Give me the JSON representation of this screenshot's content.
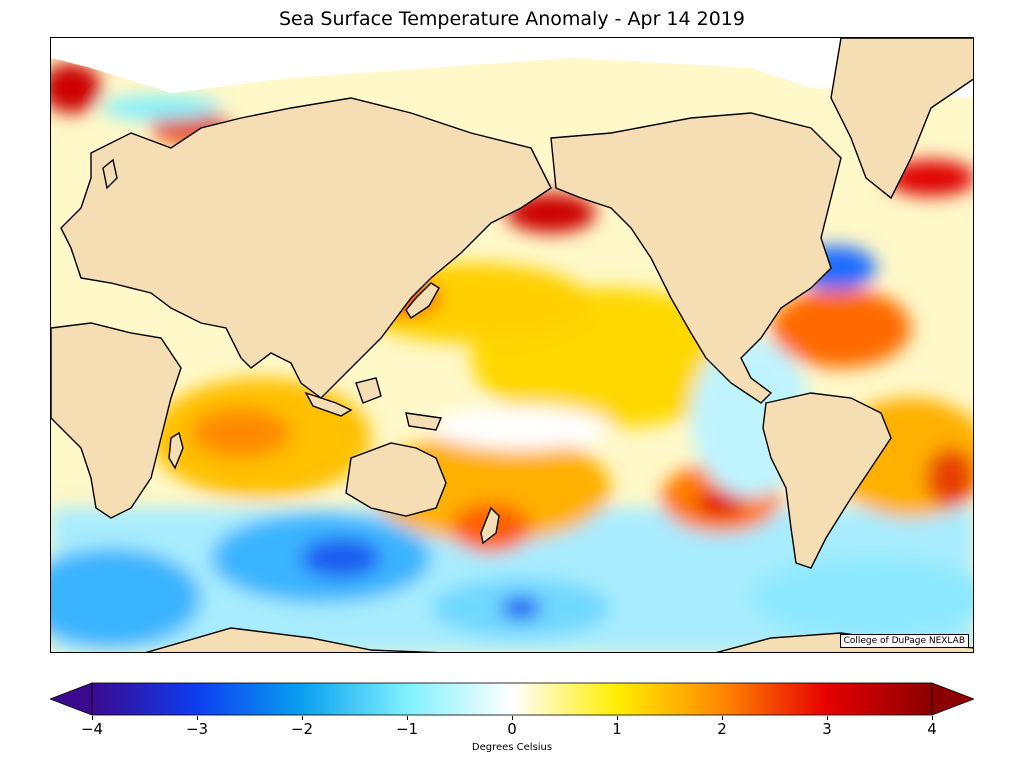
{
  "title": "Sea Surface Temperature Anomaly - Apr 14 2019",
  "credit": "College of DuPage NEXLAB",
  "colorbar": {
    "label": "Degrees Celsius",
    "min": -4,
    "max": 4,
    "ticks": [
      "−4",
      "−3",
      "−2",
      "−1",
      "0",
      "1",
      "2",
      "3",
      "4"
    ],
    "tick_values": [
      -4,
      -3,
      -2,
      -1,
      0,
      1,
      2,
      3,
      4
    ],
    "colors": {
      "-4": "#3b0a8f",
      "-3": "#0d3df0",
      "-2": "#0aa0f0",
      "-1": "#7ff0ff",
      "0": "#ffffff",
      "1": "#ffee00",
      "2": "#ff8800",
      "3": "#e60000",
      "4": "#8b0000"
    },
    "extend": "both"
  },
  "map": {
    "projection": "equirectangular, Pacific-centered",
    "land_color": "#f5deb3",
    "ice_color": "#ffffff",
    "coastline_color": "#000000"
  }
}
